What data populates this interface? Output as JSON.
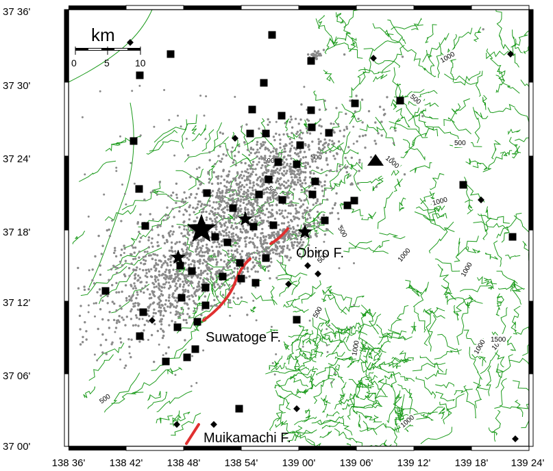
{
  "map": {
    "colors": {
      "contour": "#1a9a1a",
      "fault": "#e03030",
      "event": "#8a8a8a",
      "frame": "#000000"
    },
    "x_ticks": [
      "138 36'",
      "138 42'",
      "138 48'",
      "138 54'",
      "139 00'",
      "139 06'",
      "139 12'",
      "139 18'",
      "139 24'"
    ],
    "y_ticks": [
      "37 36'",
      "37 30'",
      "37 24'",
      "37 18'",
      "37 12'",
      "37 06'",
      "37 00'"
    ],
    "scale": {
      "title": "km",
      "labels": [
        "0",
        "5",
        "10"
      ]
    },
    "faults": [
      {
        "name": "Obiro F."
      },
      {
        "name": "Suwatoge F."
      },
      {
        "name": "Muikamachi F."
      }
    ],
    "contour_labels": [
      "1000",
      "500",
      "500",
      "1000",
      "500",
      "500",
      "1000",
      "500",
      "1000",
      "1000",
      "500",
      "1000",
      "500",
      "1000",
      "1000",
      "1500",
      "500",
      "500",
      "1000"
    ]
  }
}
